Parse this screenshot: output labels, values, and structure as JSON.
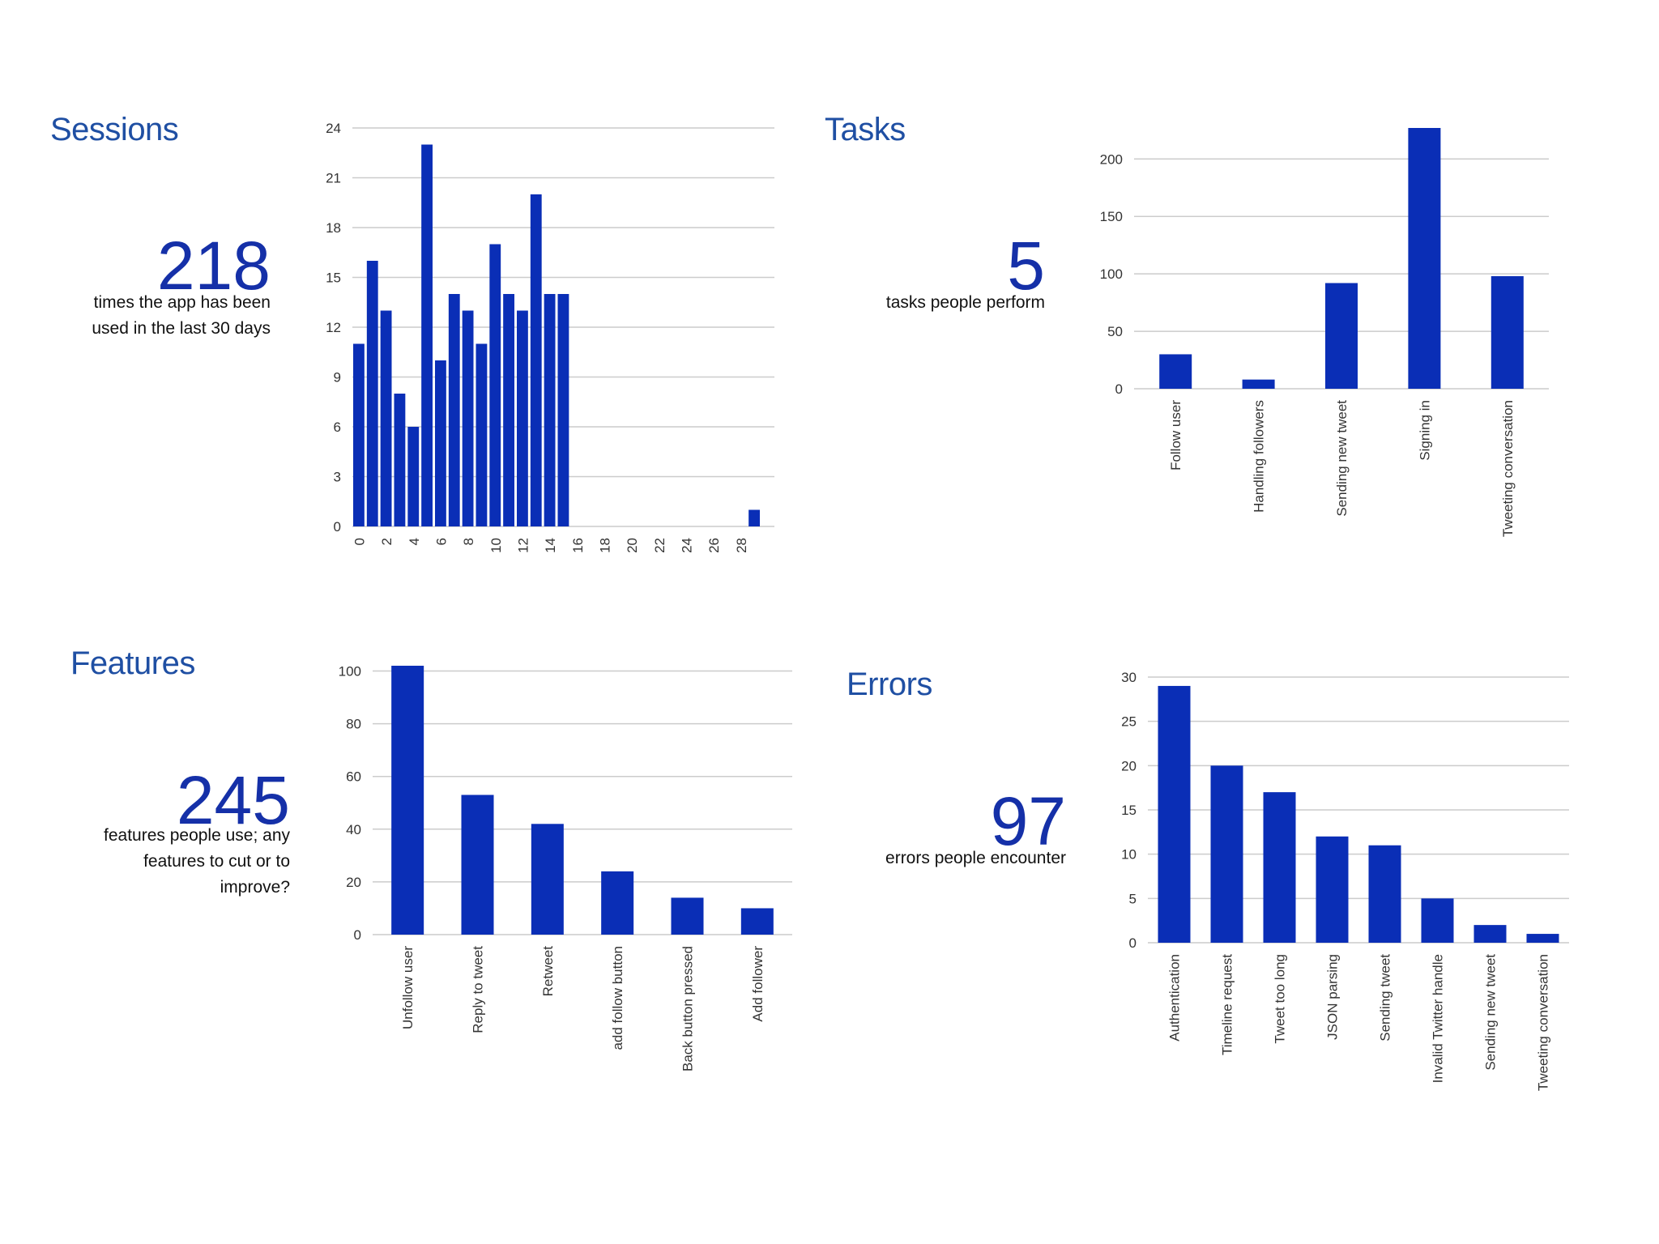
{
  "colors": {
    "bar": "#0a2eb6",
    "title": "#1f4fa3",
    "number": "#1530a8",
    "grid": "#cccccc"
  },
  "sessions": {
    "title": "Sessions",
    "count": "218",
    "caption_line1": "times the app has been",
    "caption_line2": "used in the last 30 days"
  },
  "tasks": {
    "title": "Tasks",
    "count": "5",
    "caption_line1": "tasks people perform"
  },
  "features": {
    "title": "Features",
    "count": "245",
    "caption_line1": "features people use; any",
    "caption_line2": "features to cut or to",
    "caption_line3": "improve?"
  },
  "errors": {
    "title": "Errors",
    "count": "97",
    "caption_line1": "errors people encounter"
  },
  "chart_data": [
    {
      "id": "sessions",
      "type": "bar",
      "x": [
        0,
        1,
        2,
        3,
        4,
        5,
        6,
        7,
        8,
        9,
        10,
        11,
        12,
        13,
        14,
        15,
        16,
        17,
        18,
        19,
        20,
        21,
        22,
        23,
        24,
        25,
        26,
        27,
        28,
        29
      ],
      "values": [
        11,
        16,
        13,
        8,
        6,
        23,
        10,
        14,
        13,
        11,
        17,
        14,
        13,
        20,
        14,
        14,
        0,
        0,
        0,
        0,
        0,
        0,
        0,
        0,
        0,
        0,
        0,
        0,
        0,
        1
      ],
      "xtick_labels": [
        "0",
        "2",
        "4",
        "6",
        "8",
        "10",
        "12",
        "14",
        "16",
        "18",
        "20",
        "22",
        "24",
        "26",
        "28"
      ],
      "yticks": [
        0,
        3,
        6,
        9,
        12,
        15,
        18,
        21,
        24
      ],
      "ylim": [
        0,
        24
      ],
      "grid": true
    },
    {
      "id": "tasks",
      "type": "bar",
      "categories": [
        "Follow user",
        "Handling followers",
        "Sending new tweet",
        "Signing in",
        "Tweeting conversation"
      ],
      "values": [
        30,
        8,
        92,
        227,
        98
      ],
      "yticks": [
        0,
        50,
        100,
        150,
        200
      ],
      "ylim": [
        0,
        227
      ],
      "grid": true
    },
    {
      "id": "features",
      "type": "bar",
      "categories": [
        "Unfollow user",
        "Reply to tweet",
        "Retweet",
        "add follow button",
        "Back button pressed",
        "Add follower"
      ],
      "values": [
        102,
        53,
        42,
        24,
        14,
        10
      ],
      "yticks": [
        0,
        20,
        40,
        60,
        80,
        100
      ],
      "ylim": [
        0,
        102
      ],
      "grid": true
    },
    {
      "id": "errors",
      "type": "bar",
      "categories": [
        "Authentication",
        "Timeline request",
        "Tweet too long",
        "JSON parsing",
        "Sending tweet",
        "Invalid Twitter handle",
        "Sending new tweet",
        "Tweeting conversation"
      ],
      "values": [
        29,
        20,
        17,
        12,
        11,
        5,
        2,
        1
      ],
      "yticks": [
        0,
        5,
        10,
        15,
        20,
        25,
        30
      ],
      "ylim": [
        0,
        30
      ],
      "grid": true
    }
  ]
}
